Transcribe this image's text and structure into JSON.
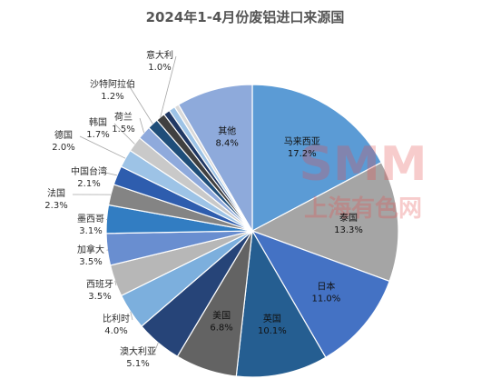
{
  "chart_data": {
    "type": "pie",
    "title": "2024年1-4月份废铝进口来源国",
    "slices": [
      {
        "label": "马来西亚",
        "value": 17.2,
        "display": "17.2%",
        "color": "#5b9bd5"
      },
      {
        "label": "泰国",
        "value": 13.3,
        "display": "13.3%",
        "color": "#a5a5a5"
      },
      {
        "label": "日本",
        "value": 11.0,
        "display": "11.0%",
        "color": "#4472c4"
      },
      {
        "label": "英国",
        "value": 10.1,
        "display": "10.1%",
        "color": "#255e91"
      },
      {
        "label": "美国",
        "value": 6.8,
        "display": "6.8%",
        "color": "#636363"
      },
      {
        "label": "澳大利亚",
        "value": 5.1,
        "display": "5.1%",
        "color": "#264478"
      },
      {
        "label": "比利时",
        "value": 4.0,
        "display": "4.0%",
        "color": "#7cafdd"
      },
      {
        "label": "西班牙",
        "value": 3.5,
        "display": "3.5%",
        "color": "#b7b7b7"
      },
      {
        "label": "加拿大",
        "value": 3.5,
        "display": "3.5%",
        "color": "#698ed0"
      },
      {
        "label": "墨西哥",
        "value": 3.1,
        "display": "3.1%",
        "color": "#327dc2"
      },
      {
        "label": "法国",
        "value": 2.3,
        "display": "2.3%",
        "color": "#848484"
      },
      {
        "label": "中国台湾",
        "value": 2.1,
        "display": "2.1%",
        "color": "#2e5dae"
      },
      {
        "label": "德国",
        "value": 2.0,
        "display": "2.0%",
        "color": "#9dc3e6"
      },
      {
        "label": "韩国",
        "value": 1.7,
        "display": "1.7%",
        "color": "#c9c9c9"
      },
      {
        "label": "荷兰",
        "value": 1.5,
        "display": "1.5%",
        "color": "#8faadc"
      },
      {
        "label": "沙特阿拉伯",
        "value": 1.2,
        "display": "1.2%",
        "color": "#1f4e79"
      },
      {
        "label": "意大利",
        "value": 1.0,
        "display": "1.0%",
        "color": "#404040"
      },
      {
        "label": "",
        "value": 0.7,
        "display": "",
        "color": "#203864"
      },
      {
        "label": "",
        "value": 0.7,
        "display": "",
        "color": "#9dc3e6"
      },
      {
        "label": "",
        "value": 0.5,
        "display": "",
        "color": "#d9d9d9"
      },
      {
        "label": "其他",
        "value": 8.4,
        "display": "8.4%",
        "color": "#8eaadb"
      }
    ]
  },
  "watermark": {
    "brand": "SMM",
    "text": "上海有色网"
  }
}
